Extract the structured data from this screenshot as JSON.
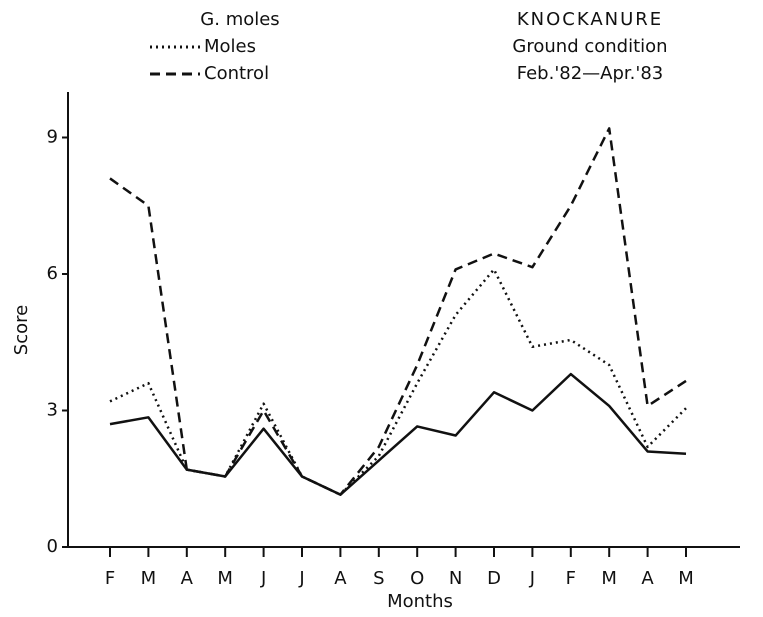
{
  "chart_data": {
    "type": "line",
    "title": "G. moles",
    "annotations": [
      "KNOCKANURE",
      "Ground condition",
      "Feb.'82—Apr.'83"
    ],
    "x_label": "Months",
    "y_label": "Score",
    "categories": [
      "F",
      "M",
      "A",
      "M",
      "J",
      "J",
      "A",
      "S",
      "O",
      "N",
      "D",
      "J",
      "F",
      "M",
      "A",
      "M"
    ],
    "series": [
      {
        "name": "Moles",
        "color": "#111111",
        "style": "dotted",
        "values": [
          3.2,
          3.6,
          1.7,
          1.55,
          3.15,
          1.55,
          1.15,
          2.0,
          3.6,
          5.1,
          6.1,
          4.4,
          4.55,
          4.0,
          2.2,
          3.05
        ]
      },
      {
        "name": "Control",
        "color": "#111111",
        "style": "dashed",
        "values": [
          8.1,
          7.5,
          1.7,
          1.55,
          3.0,
          1.55,
          1.15,
          2.2,
          4.0,
          6.1,
          6.45,
          6.15,
          7.5,
          9.2,
          3.1,
          3.65
        ]
      },
      {
        "color": "#111111",
        "style": "solid",
        "values": [
          2.7,
          2.85,
          1.7,
          1.55,
          2.6,
          1.55,
          1.15,
          1.9,
          2.65,
          2.45,
          3.4,
          3.0,
          3.8,
          3.1,
          2.1,
          2.05
        ]
      }
    ],
    "ylim": [
      0,
      10
    ],
    "yticks": [
      0,
      3,
      6,
      9
    ]
  }
}
